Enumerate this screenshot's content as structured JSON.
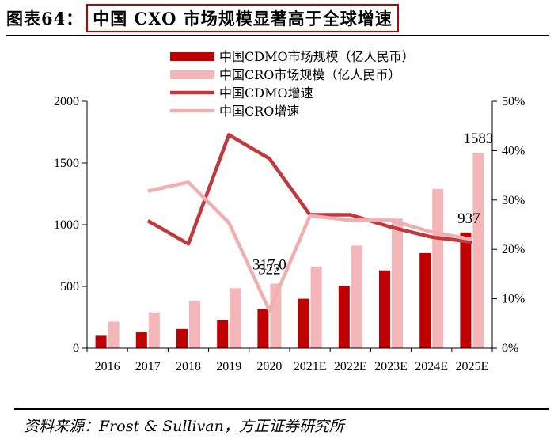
{
  "header": {
    "figure_number": "图表64：",
    "title": "中国 CXO 市场规模显著高于全球增速"
  },
  "source": "资料来源：Frost & Sullivan，方正证券研究所",
  "colors": {
    "cdmo_bar": "#c00000",
    "cro_bar": "#f4b6b9",
    "cdmo_line": "#c0393c",
    "cro_line": "#f0b0b2",
    "title_border": "#c00000"
  },
  "chart_data": {
    "type": "bar",
    "categories": [
      "2016",
      "2017",
      "2018",
      "2019",
      "2020",
      "2021E",
      "2022E",
      "2023E",
      "2024E",
      "2025E"
    ],
    "series": [
      {
        "name": "中国CDMO市场规模（亿人民币）",
        "type": "bar",
        "axis": "left",
        "values": [
          100,
          128,
          155,
          225,
          317,
          400,
          505,
          630,
          770,
          937
        ]
      },
      {
        "name": "中国CRO市场规模（亿人民币）",
        "type": "bar",
        "axis": "left",
        "values": [
          215,
          290,
          383,
          485,
          522,
          660,
          830,
          1050,
          1290,
          1583
        ]
      },
      {
        "name": "中国CDMO增速",
        "type": "line",
        "axis": "right",
        "values": [
          null,
          25.8,
          21.1,
          43.2,
          38.4,
          27.0,
          27.0,
          24.5,
          22.5,
          21.5
        ]
      },
      {
        "name": "中国CRO增速",
        "type": "line",
        "axis": "right",
        "values": [
          null,
          31.8,
          33.6,
          25.4,
          7.6,
          26.8,
          25.9,
          25.9,
          23.5,
          22.0
        ]
      }
    ],
    "data_labels": [
      {
        "series": 0,
        "index": 4,
        "text": "317.0"
      },
      {
        "series": 1,
        "index": 4,
        "text": "522"
      },
      {
        "series": 0,
        "index": 9,
        "text": "937"
      },
      {
        "series": 1,
        "index": 9,
        "text": "1583"
      }
    ],
    "ylim_left": [
      0,
      2000
    ],
    "yticks_left": [
      "0",
      "500",
      "1000",
      "1500",
      "2000"
    ],
    "ylim_right": [
      0,
      50
    ],
    "yticks_right": [
      "0%",
      "10%",
      "20%",
      "30%",
      "40%",
      "50%"
    ],
    "legend_position": "top-center",
    "grid": false
  }
}
